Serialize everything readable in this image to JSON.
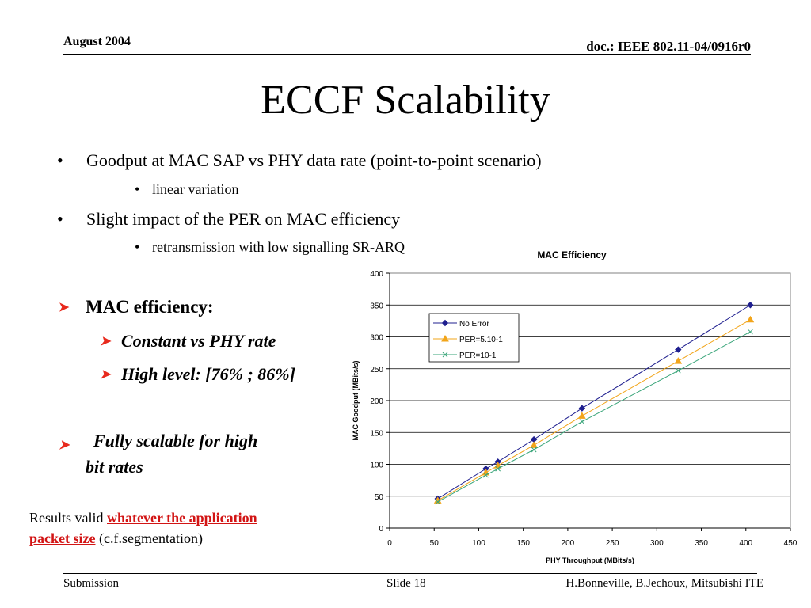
{
  "header": {
    "date": "August 2004",
    "doc": "doc.: IEEE 802.11-04/0916r0"
  },
  "slide_title": "ECCF Scalability",
  "bullets": {
    "b1": "Goodput at MAC SAP vs PHY data rate (point-to-point scenario)",
    "b1_sub": "linear variation",
    "b2": "Slight impact of the PER on MAC efficiency",
    "b2_sub": "retransmission with low signalling SR-ARQ"
  },
  "mac": {
    "heading": "MAC efficiency:",
    "item1": "Constant vs PHY rate",
    "item2": "High level: [76% ; 86%]",
    "item3_line1": "Fully scalable for high",
    "item3_line2": "bit rates"
  },
  "results": {
    "prefix": "Results valid ",
    "highlight_1": "whatever the application",
    "highlight_2": "packet size",
    "suffix": " (c.f.segmentation)"
  },
  "footer": {
    "left": "Submission",
    "center": "Slide 18",
    "right": "H.Bonneville, B.Jechoux, Mitsubishi ITE"
  },
  "chart_data": {
    "type": "line",
    "title": "MAC Efficiency",
    "xlabel": "PHY Throughput (MBits/s)",
    "ylabel": "MAC Goodput (MBits/s)",
    "xlim": [
      0,
      450
    ],
    "ylim": [
      0,
      400
    ],
    "xticks": [
      0,
      50,
      100,
      150,
      200,
      250,
      300,
      350,
      400,
      450
    ],
    "yticks": [
      0,
      50,
      100,
      150,
      200,
      250,
      300,
      350,
      400
    ],
    "grid": "horizontal",
    "legend_position": "top-left inside",
    "series": [
      {
        "name": "No Error",
        "color": "#1f1f8f",
        "marker": "diamond",
        "points": [
          [
            54,
            46
          ],
          [
            108,
            93
          ],
          [
            121.5,
            104
          ],
          [
            162,
            139
          ],
          [
            216,
            188
          ],
          [
            324,
            280
          ],
          [
            405,
            350
          ]
        ]
      },
      {
        "name": "PER=5.10-1",
        "color": "#f2a51a",
        "marker": "triangle",
        "points": [
          [
            54,
            43
          ],
          [
            108,
            87
          ],
          [
            121.5,
            98
          ],
          [
            162,
            130
          ],
          [
            216,
            176
          ],
          [
            324,
            262
          ],
          [
            405,
            327
          ]
        ]
      },
      {
        "name": "PER=10-1",
        "color": "#3aa57a",
        "marker": "x",
        "points": [
          [
            54,
            41
          ],
          [
            108,
            83
          ],
          [
            121.5,
            93
          ],
          [
            162,
            123
          ],
          [
            216,
            167
          ],
          [
            324,
            247
          ],
          [
            405,
            308
          ]
        ]
      }
    ]
  }
}
